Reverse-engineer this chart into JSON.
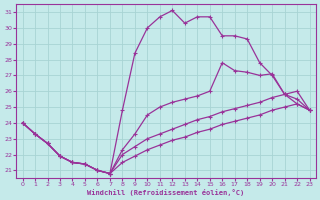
{
  "xlabel": "Windchill (Refroidissement éolien,°C)",
  "xlim": [
    -0.5,
    23.5
  ],
  "ylim": [
    20.5,
    31.5
  ],
  "xticks": [
    0,
    1,
    2,
    3,
    4,
    5,
    6,
    7,
    8,
    9,
    10,
    11,
    12,
    13,
    14,
    15,
    16,
    17,
    18,
    19,
    20,
    21,
    22,
    23
  ],
  "yticks": [
    21,
    22,
    23,
    24,
    25,
    26,
    27,
    28,
    29,
    30,
    31
  ],
  "background_color": "#c5eaea",
  "grid_color": "#a8d4d4",
  "line_color": "#993399",
  "line1_y": [
    24.0,
    23.3,
    22.7,
    21.9,
    21.5,
    21.4,
    21.0,
    20.8,
    24.8,
    28.4,
    30.0,
    30.7,
    31.1,
    30.3,
    30.7,
    30.7,
    29.5,
    29.5,
    29.3,
    27.8,
    27.0,
    25.8,
    25.2,
    24.8
  ],
  "line2_y": [
    24.0,
    23.3,
    22.7,
    21.9,
    21.5,
    21.4,
    21.0,
    20.8,
    22.3,
    23.3,
    24.5,
    25.0,
    25.3,
    25.5,
    25.7,
    26.0,
    27.8,
    27.3,
    27.2,
    27.0,
    27.1,
    25.8,
    25.5,
    24.8
  ],
  "line3_y": [
    24.0,
    23.3,
    22.7,
    21.9,
    21.5,
    21.4,
    21.0,
    20.8,
    22.0,
    22.5,
    23.0,
    23.3,
    23.6,
    23.9,
    24.2,
    24.4,
    24.7,
    24.9,
    25.1,
    25.3,
    25.6,
    25.8,
    26.0,
    24.8
  ],
  "line4_y": [
    24.0,
    23.3,
    22.7,
    21.9,
    21.5,
    21.4,
    21.0,
    20.8,
    21.5,
    21.9,
    22.3,
    22.6,
    22.9,
    23.1,
    23.4,
    23.6,
    23.9,
    24.1,
    24.3,
    24.5,
    24.8,
    25.0,
    25.2,
    24.8
  ]
}
